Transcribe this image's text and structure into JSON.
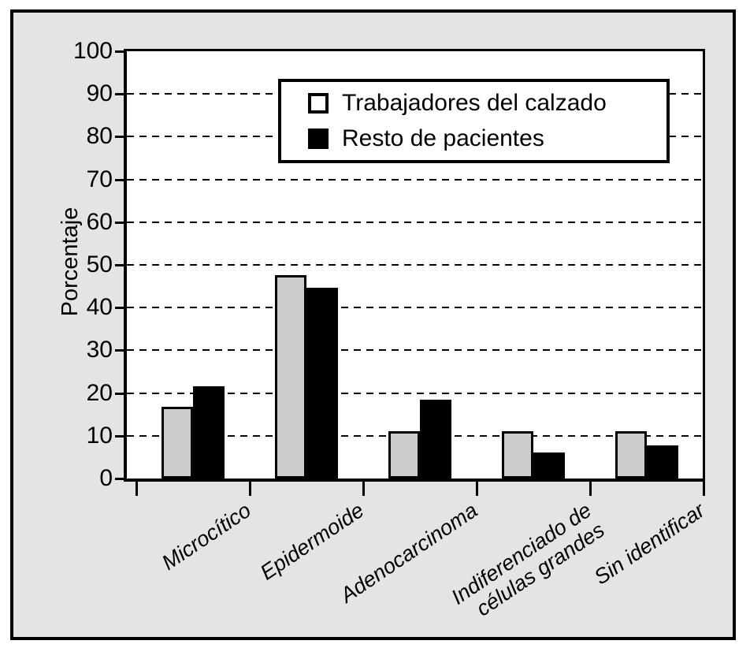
{
  "chart_data": {
    "type": "bar",
    "title": "",
    "xlabel": "",
    "ylabel": "Porcentaje",
    "ylim": [
      0,
      100
    ],
    "ytick_step": 10,
    "grid": "horizontal-dashed",
    "legend_position": "top-center-inside",
    "categories": [
      "Microcítico",
      "Epidermoide",
      "Adenocarcinoma",
      "Indiferenciado de\ncélulas grandes",
      "Sin identificar"
    ],
    "series": [
      {
        "name": "Trabajadores del calzado",
        "color": "#cccccc",
        "swatch": "open-square",
        "values": [
          16.7,
          47.6,
          11.1,
          11.1,
          11.1
        ]
      },
      {
        "name": "Resto de pacientes",
        "color": "#000000",
        "swatch": "filled-square",
        "values": [
          21.5,
          44.6,
          18.5,
          6.1,
          7.7
        ]
      }
    ],
    "yticks": [
      0,
      10,
      20,
      30,
      40,
      50,
      60,
      70,
      80,
      90,
      100
    ]
  },
  "style": {
    "frame_background": "#e4e4e4",
    "plot_background": "#ffffff",
    "line_color": "#000000"
  }
}
